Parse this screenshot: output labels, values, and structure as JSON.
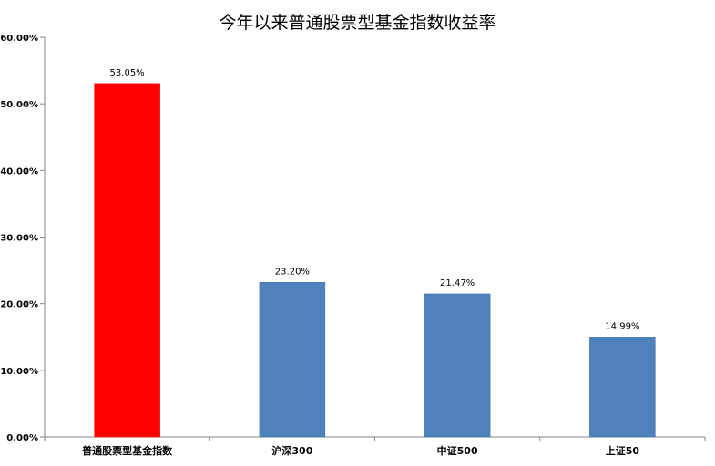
{
  "chart_data": {
    "type": "bar",
    "title": "今年以来普通股票型基金指数收益率",
    "categories": [
      "普通股票型基金指数",
      "沪深300",
      "中证500",
      "上证50"
    ],
    "values": [
      53.05,
      23.2,
      21.47,
      14.99
    ],
    "value_labels": [
      "53.05%",
      "23.20%",
      "21.47%",
      "14.99%"
    ],
    "bar_colors": [
      "#ff0000",
      "#4f81bd",
      "#4f81bd",
      "#4f81bd"
    ],
    "ylim": [
      0,
      60
    ],
    "yticks": [
      0,
      10,
      20,
      30,
      40,
      50,
      60
    ],
    "ytick_labels": [
      "0.00%",
      "10.00%",
      "20.00%",
      "30.00%",
      "40.00%",
      "50.00%",
      "60.00%"
    ],
    "xlabel": "",
    "ylabel": "",
    "grid": false,
    "legend": "none"
  }
}
